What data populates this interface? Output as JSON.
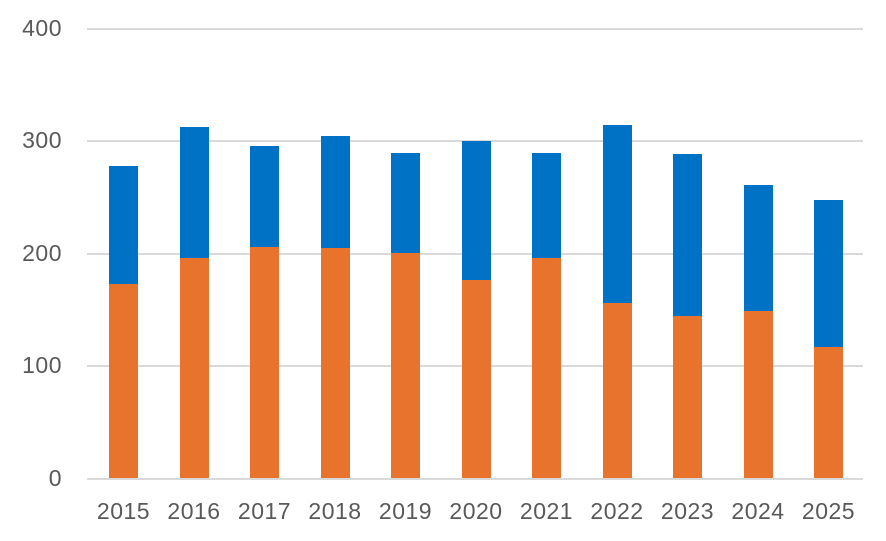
{
  "chart_data": {
    "type": "bar",
    "stacked": true,
    "title": "",
    "xlabel": "",
    "ylabel": "",
    "categories": [
      "2015",
      "2016",
      "2017",
      "2018",
      "2019",
      "2020",
      "2021",
      "2022",
      "2023",
      "2024",
      "2025"
    ],
    "series": [
      {
        "name": "bottom-segment-orange",
        "color": "#e8732c",
        "values": [
          172,
          195,
          205,
          204,
          200,
          176,
          195,
          155,
          144,
          148,
          116
        ]
      },
      {
        "name": "top-segment-blue",
        "color": "#0072c6",
        "values": [
          105,
          117,
          90,
          100,
          89,
          123,
          94,
          158,
          144,
          112,
          131
        ]
      }
    ],
    "totals": [
      277,
      312,
      295,
      304,
      289,
      299,
      289,
      313,
      288,
      260,
      247
    ],
    "ylim": [
      0,
      400
    ],
    "yticks": [
      0,
      100,
      200,
      300,
      400
    ],
    "ytick_labels": [
      "0",
      "100",
      "200",
      "300",
      "400"
    ],
    "grid": true,
    "legend": false
  },
  "colors": {
    "gridline": "#d9d9d9",
    "axis_line": "#d9d9d9",
    "tick_text": "#595959",
    "background": "#ffffff"
  }
}
